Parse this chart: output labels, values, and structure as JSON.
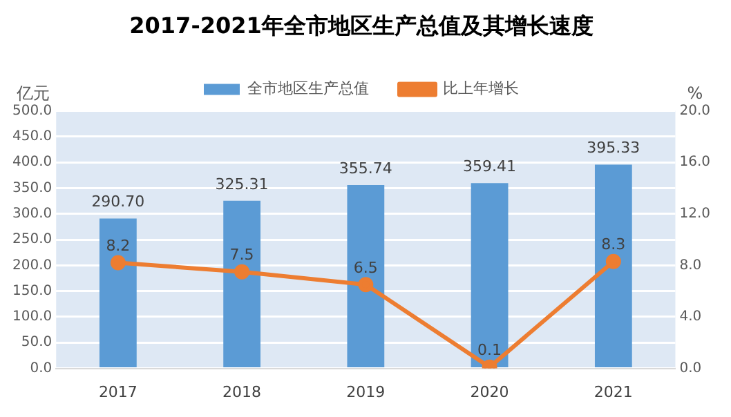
{
  "chart_data": {
    "type": "bar",
    "title": "2017-2021年全市地区生产总值及其增长速度",
    "ylabel": "亿元",
    "y2label": "%",
    "categories": [
      "2017",
      "2018",
      "2019",
      "2020",
      "2021"
    ],
    "series": [
      {
        "name": "全市地区生产总值",
        "color": "#5b9bd5",
        "values": [
          290.7,
          325.31,
          355.74,
          359.41,
          395.33
        ],
        "value_labels": [
          "290.70",
          "325.31",
          "355.74",
          "359.41",
          "395.33"
        ]
      },
      {
        "name": "比上年增长",
        "type": "line",
        "axis": "y2",
        "color": "#ed7d31",
        "marker": "circle",
        "values": [
          8.2,
          7.5,
          6.5,
          0.1,
          8.3
        ],
        "value_labels": [
          "8.2",
          "7.5",
          "6.5",
          "0.1",
          "8.3"
        ]
      }
    ],
    "ylim": [
      0,
      500
    ],
    "yticks": [
      {
        "value": 0,
        "label": "0.0"
      },
      {
        "value": 50,
        "label": "50.0"
      },
      {
        "value": 100,
        "label": "100.0"
      },
      {
        "value": 150,
        "label": "150.0"
      },
      {
        "value": 200,
        "label": "200.0"
      },
      {
        "value": 250,
        "label": "250.0"
      },
      {
        "value": 300,
        "label": "300.0"
      },
      {
        "value": 350,
        "label": "350.0"
      },
      {
        "value": 400,
        "label": "400.0"
      },
      {
        "value": 450,
        "label": "450.0"
      },
      {
        "value": 500,
        "label": "500.0"
      }
    ],
    "y2lim": [
      0,
      20
    ],
    "y2ticks": [
      {
        "value": 0,
        "label": "0.0"
      },
      {
        "value": 4,
        "label": "4.0"
      },
      {
        "value": 8,
        "label": "8.0"
      },
      {
        "value": 12,
        "label": "12.0"
      },
      {
        "value": 16,
        "label": "16.0"
      },
      {
        "value": 20,
        "label": "20.0"
      }
    ],
    "grid": "y",
    "legend": "top"
  }
}
